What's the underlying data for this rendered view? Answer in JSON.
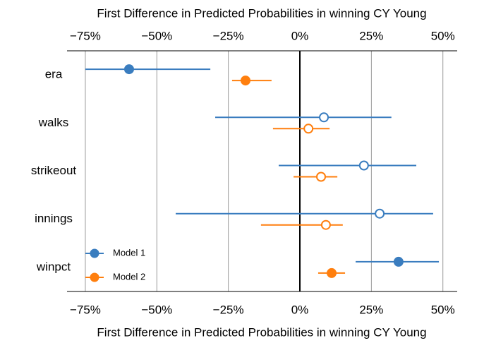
{
  "chart_data": {
    "type": "interval",
    "x_label": "First Difference in Predicted Probabilities in winning CY Young",
    "categories": [
      "era",
      "walks",
      "strikeout",
      "innings",
      "winpct"
    ],
    "series": [
      {
        "name": "Model 1",
        "color": "#3a7dbf",
        "values": [
          -59.7,
          8.4,
          22.4,
          27.9,
          34.5
        ],
        "lower": [
          -75,
          -29.6,
          -7.4,
          -43.4,
          19.5
        ],
        "upper": [
          -31.3,
          32,
          40.7,
          46.6,
          48.6
        ],
        "filled": [
          true,
          false,
          false,
          false,
          true
        ]
      },
      {
        "name": "Model 2",
        "color": "#ff7f0e",
        "values": [
          -19,
          3,
          7.4,
          9.1,
          11.1
        ],
        "lower": [
          -23.7,
          -9.4,
          -2.2,
          -13.6,
          6.4
        ],
        "upper": [
          -9.9,
          10.4,
          13.1,
          15,
          15.8
        ],
        "filled": [
          true,
          false,
          false,
          false,
          true
        ]
      }
    ],
    "xlim": [
      -81.4,
      55
    ],
    "xticks": [
      {
        "value": -75,
        "label": "−75%"
      },
      {
        "value": -50,
        "label": "−50%"
      },
      {
        "value": -25,
        "label": "−25%"
      },
      {
        "value": 0,
        "label": "0%"
      },
      {
        "value": 25,
        "label": "25%"
      },
      {
        "value": 50,
        "label": "50%"
      }
    ],
    "grid": true,
    "legend": "lower left"
  }
}
